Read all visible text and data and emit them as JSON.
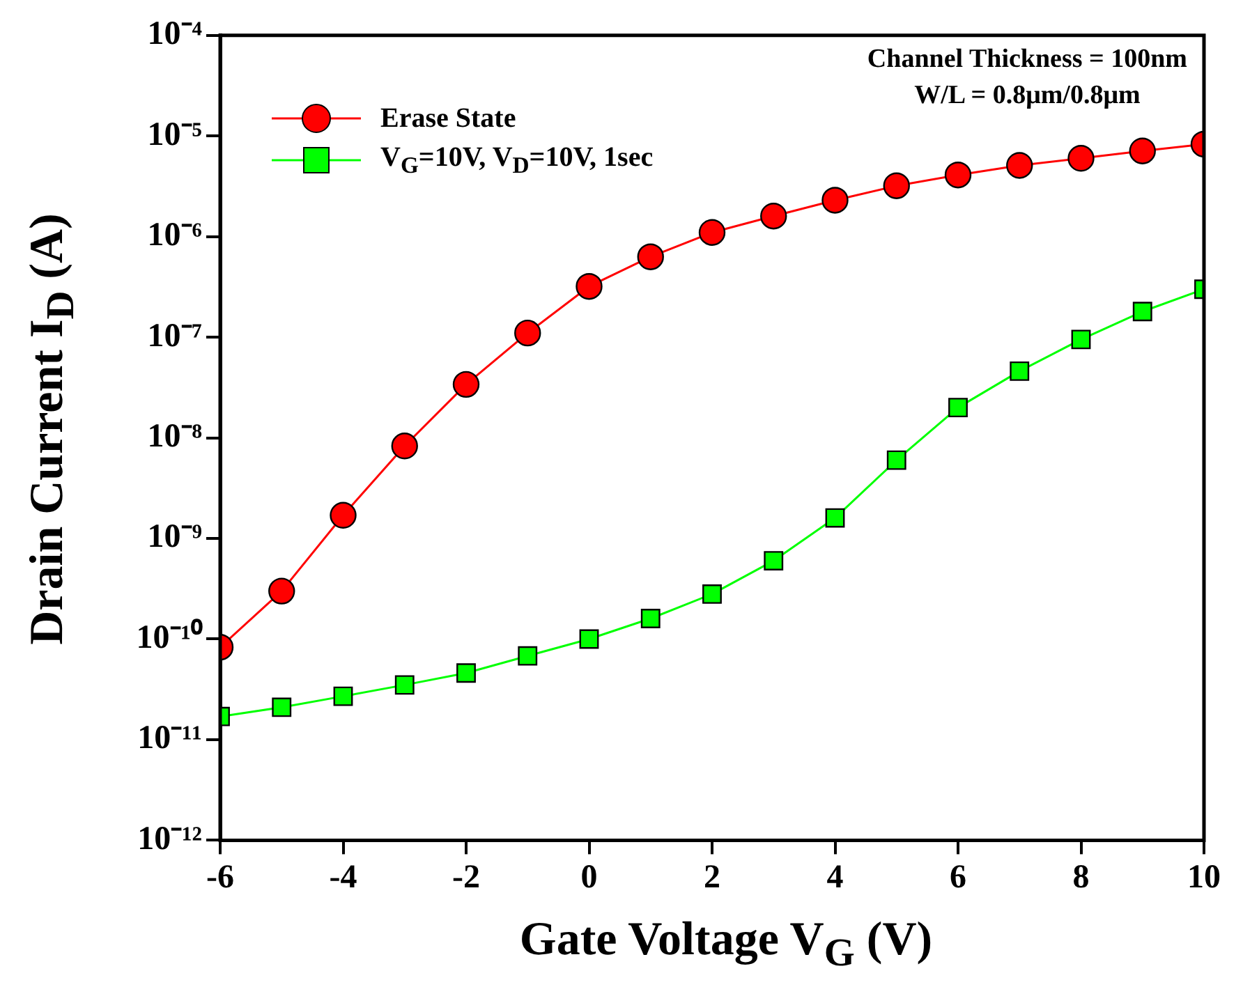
{
  "chart_data": {
    "type": "line",
    "xlabel": "Gate Voltage V$_{G}$ (V)",
    "ylabel": "Drain Current I$_{D}$ (A)",
    "x": [
      -6,
      -5,
      -4,
      -3,
      -2,
      -1,
      0,
      1,
      2,
      3,
      4,
      5,
      6,
      7,
      8,
      9,
      10
    ],
    "series": [
      {
        "name": "Erase State",
        "color": "#ff0000",
        "marker": "circle",
        "values": [
          8.3e-11,
          3e-10,
          1.7e-09,
          8.3e-09,
          3.4e-08,
          1.1e-07,
          3.2e-07,
          6.3e-07,
          1.1e-06,
          1.6e-06,
          2.3e-06,
          3.2e-06,
          4.1e-06,
          5.1e-06,
          6e-06,
          7.1e-06,
          8.3e-06
        ]
      },
      {
        "name": "V$_{G}$=10V, V$_{D}$=10V, 1sec",
        "color": "#00ff00",
        "marker": "square",
        "values": [
          1.7e-11,
          2.1e-11,
          2.7e-11,
          3.5e-11,
          4.6e-11,
          6.8e-11,
          1e-10,
          1.6e-10,
          2.8e-10,
          6e-10,
          1.6e-09,
          6e-09,
          2e-08,
          4.6e-08,
          9.5e-08,
          1.8e-07,
          3e-07
        ]
      }
    ],
    "xlim": [
      -6,
      10
    ],
    "xticks": [
      -6,
      -4,
      -2,
      0,
      2,
      4,
      6,
      8,
      10
    ],
    "ylim": [
      1e-12,
      0.0001
    ],
    "yticks": [
      {
        "value": 1e-12,
        "label": "10⁻¹²"
      },
      {
        "value": 1e-11,
        "label": "10⁻¹¹"
      },
      {
        "value": 1e-10,
        "label": "10⁻¹⁰"
      },
      {
        "value": 1e-09,
        "label": "10⁻⁹"
      },
      {
        "value": 1e-08,
        "label": "10⁻⁸"
      },
      {
        "value": 1e-07,
        "label": "10⁻⁷"
      },
      {
        "value": 1e-06,
        "label": "10⁻⁶"
      },
      {
        "value": 1e-05,
        "label": "10⁻⁵"
      },
      {
        "value": 0.0001,
        "label": "10⁻⁴"
      }
    ],
    "log": "y",
    "grid": false,
    "legend": "top left",
    "annotations": [
      "Channel Thickness = 100nm",
      "W/L = 0.8μm/0.8μm"
    ]
  }
}
